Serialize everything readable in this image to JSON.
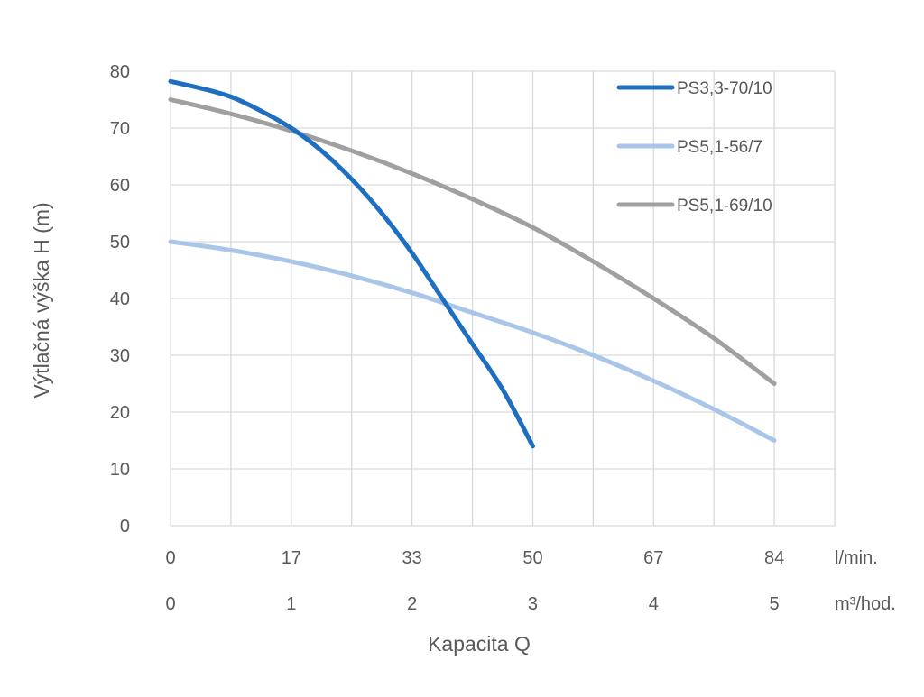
{
  "chart_data": {
    "type": "line",
    "title": "",
    "xlabel": "Kapacita Q",
    "ylabel": "Výtlačná výška H (m)",
    "x_unit": "m³/hod.",
    "xlim": [
      0,
      5.5
    ],
    "ylim": [
      0,
      80
    ],
    "y_ticks": [
      0,
      10,
      20,
      30,
      40,
      50,
      60,
      70,
      80
    ],
    "x_ticks": [
      {
        "value": 0,
        "lmin": "0",
        "m3h": "0"
      },
      {
        "value": 1,
        "lmin": "17",
        "m3h": "1"
      },
      {
        "value": 2,
        "lmin": "33",
        "m3h": "2"
      },
      {
        "value": 3,
        "lmin": "50",
        "m3h": "3"
      },
      {
        "value": 4,
        "lmin": "67",
        "m3h": "4"
      },
      {
        "value": 5,
        "lmin": "84",
        "m3h": "5"
      }
    ],
    "x_unit_lmin": "l/min.",
    "x_unit_m3h": "m³/hod.",
    "grid": true,
    "legend_position": "top-right",
    "series": [
      {
        "name": "PS3,3-70/10",
        "color": "#1f6fc0",
        "points": [
          [
            0,
            78.2
          ],
          [
            0.25,
            77
          ],
          [
            0.5,
            75.5
          ],
          [
            0.75,
            73
          ],
          [
            1,
            70
          ],
          [
            1.25,
            66
          ],
          [
            1.5,
            61
          ],
          [
            1.75,
            55
          ],
          [
            2,
            48
          ],
          [
            2.25,
            40
          ],
          [
            2.5,
            32
          ],
          [
            2.75,
            24
          ],
          [
            3,
            14
          ]
        ]
      },
      {
        "name": "PS5,1-56/7",
        "color": "#a9c6e8",
        "points": [
          [
            0,
            50
          ],
          [
            0.5,
            48.5
          ],
          [
            1,
            46.5
          ],
          [
            1.5,
            44
          ],
          [
            2,
            41
          ],
          [
            2.5,
            37.5
          ],
          [
            3,
            34
          ],
          [
            3.5,
            30
          ],
          [
            4,
            25.5
          ],
          [
            4.5,
            20.5
          ],
          [
            5,
            15
          ]
        ]
      },
      {
        "name": "PS5,1-69/10",
        "color": "#a0a0a0",
        "points": [
          [
            0,
            75
          ],
          [
            0.5,
            72.5
          ],
          [
            1,
            69.5
          ],
          [
            1.5,
            66
          ],
          [
            2,
            62
          ],
          [
            2.5,
            57.5
          ],
          [
            3,
            52.5
          ],
          [
            3.5,
            46.5
          ],
          [
            4,
            40
          ],
          [
            4.5,
            33
          ],
          [
            5,
            25
          ]
        ]
      }
    ]
  }
}
